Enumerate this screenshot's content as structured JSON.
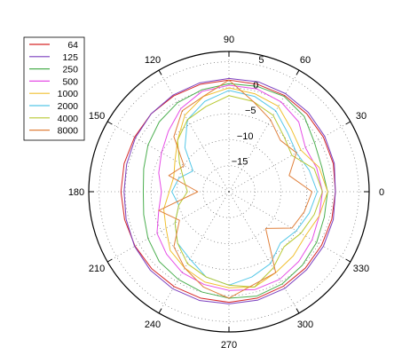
{
  "chart_data": {
    "type": "line",
    "projection": "polar",
    "title": "",
    "legend_position": "top-left",
    "grid": true,
    "angle_unit": "degrees",
    "angle_ticks": [
      0,
      30,
      60,
      90,
      120,
      150,
      180,
      210,
      240,
      270,
      300,
      330
    ],
    "angle_tick_labels": [
      "0",
      "30",
      "60",
      "90",
      "120",
      "150",
      "180",
      "210",
      "240",
      "270",
      "300",
      "330"
    ],
    "r_ticks": [
      -15,
      -10,
      -5,
      0,
      5
    ],
    "r_tick_labels": [
      "−15",
      "−10",
      "−5",
      "0",
      "5"
    ],
    "r_range": [
      -20,
      7
    ],
    "angles": [
      0,
      15,
      30,
      45,
      60,
      75,
      90,
      105,
      120,
      135,
      150,
      165,
      180,
      195,
      210,
      225,
      240,
      255,
      270,
      285,
      300,
      315,
      330,
      345
    ],
    "series": [
      {
        "name": "64",
        "color": "#d62728",
        "values": [
          0.5,
          0.8,
          1.0,
          1.2,
          1.4,
          1.4,
          1.5,
          1.4,
          1.3,
          1.2,
          1.0,
          0.9,
          0.8,
          0.8,
          0.9,
          1.0,
          1.1,
          1.2,
          1.3,
          1.2,
          1.0,
          0.8,
          0.6,
          0.5
        ]
      },
      {
        "name": "125",
        "color": "#7b3fbf",
        "values": [
          0.5,
          1.0,
          1.3,
          1.6,
          1.8,
          1.9,
          1.8,
          1.7,
          1.5,
          1.2,
          0.8,
          0.4,
          0.2,
          0.5,
          1.0,
          1.4,
          1.6,
          1.7,
          1.6,
          1.6,
          1.5,
          1.2,
          1.0,
          0.8
        ]
      },
      {
        "name": "250",
        "color": "#4caf50",
        "values": [
          -1.0,
          -1.5,
          -1.0,
          0.5,
          1.2,
          1.0,
          0.8,
          0.3,
          -0.2,
          -1.0,
          -2.0,
          -3.0,
          -3.5,
          -3.0,
          -2.0,
          -1.0,
          -0.5,
          0.0,
          0.5,
          0.8,
          0.5,
          0.0,
          -0.5,
          -1.0
        ]
      },
      {
        "name": "500",
        "color": "#e64de6",
        "values": [
          -2.0,
          -2.5,
          -3.0,
          -1.0,
          0.0,
          0.5,
          0.5,
          0.0,
          -1.5,
          -3.5,
          -5.0,
          -6.0,
          -7.0,
          -6.0,
          -4.0,
          -3.0,
          -2.0,
          -1.5,
          -1.0,
          -0.5,
          -0.5,
          -1.0,
          -1.5,
          -2.0
        ]
      },
      {
        "name": "1000",
        "color": "#f0c030",
        "values": [
          -1.0,
          -2.0,
          -4.0,
          -3.0,
          -1.0,
          -0.5,
          0.0,
          -1.0,
          -3.0,
          -6.0,
          -8.0,
          -9.0,
          -8.5,
          -7.0,
          -6.0,
          -4.0,
          -3.0,
          -2.0,
          -1.5,
          -1.0,
          -2.0,
          -2.5,
          -3.0,
          -2.0
        ]
      },
      {
        "name": "2000",
        "color": "#56c8e8",
        "values": [
          -3.0,
          -4.0,
          -5.0,
          -4.0,
          -2.0,
          -1.0,
          -0.5,
          -2.0,
          -4.0,
          -8.0,
          -12.0,
          -10.0,
          -9.0,
          -10.0,
          -8.0,
          -6.0,
          -5.0,
          -3.0,
          -2.0,
          -3.0,
          -4.0,
          -6.0,
          -5.0,
          -4.0
        ]
      },
      {
        "name": "4000",
        "color": "#b8c832",
        "values": [
          -2.0,
          -3.0,
          -6.0,
          -5.0,
          -3.0,
          -2.0,
          -1.5,
          -3.0,
          -4.0,
          -6.0,
          -9.0,
          -11.0,
          -12.0,
          -10.0,
          -8.0,
          -6.0,
          -4.0,
          -3.0,
          -2.0,
          -1.0,
          -3.0,
          -5.0,
          -4.0,
          -3.0
        ]
      },
      {
        "name": "8000",
        "color": "#e0803c",
        "values": [
          -4.0,
          -8.0,
          -5.0,
          -6.0,
          -4.0,
          -2.0,
          1.5,
          -1.0,
          -2.0,
          -5.0,
          -10.0,
          -8.0,
          -14.0,
          -6.0,
          -9.0,
          -5.0,
          -3.0,
          -1.0,
          0.5,
          -1.5,
          -2.0,
          -10.0,
          -6.0,
          -5.0
        ]
      }
    ]
  }
}
